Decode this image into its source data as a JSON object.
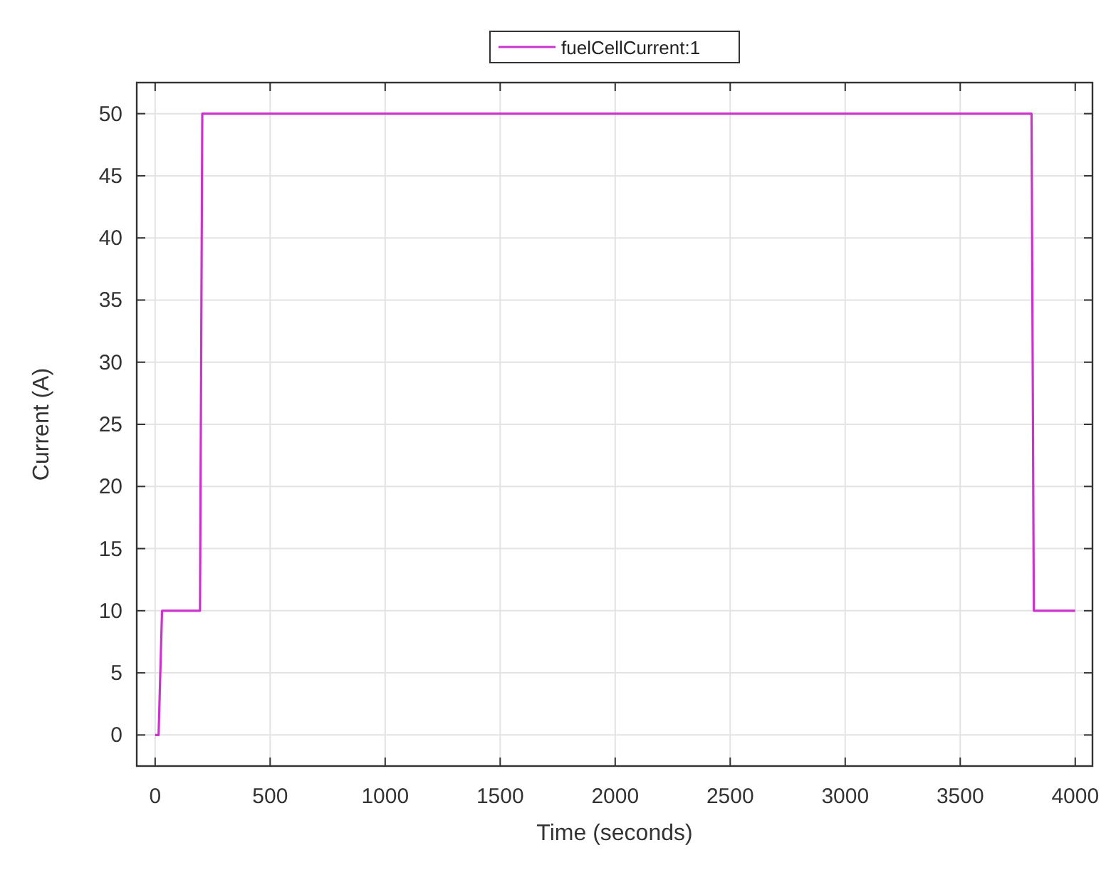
{
  "chart_data": {
    "type": "line",
    "xlabel": "Time (seconds)",
    "ylabel": "Current (A)",
    "xlim": [
      -80,
      4075
    ],
    "ylim": [
      -2.5,
      52.5
    ],
    "xticks": [
      0,
      500,
      1000,
      1500,
      2000,
      2500,
      3000,
      3500,
      4000
    ],
    "yticks": [
      0,
      5,
      10,
      15,
      20,
      25,
      30,
      35,
      40,
      45,
      50
    ],
    "grid": true,
    "legend": "top",
    "marker": "none",
    "line_style": "solid",
    "series": [
      {
        "name": "fuelCellCurrent:1",
        "color": "#cc33cc",
        "x": [
          0,
          15,
          30,
          195,
          205,
          3810,
          3820,
          4000
        ],
        "values": [
          0,
          0,
          10,
          10,
          50,
          50,
          10,
          10
        ]
      }
    ]
  }
}
